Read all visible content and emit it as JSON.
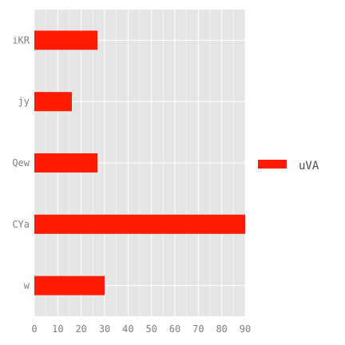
{
  "chart_data": {
    "type": "bar",
    "orientation": "horizontal",
    "categories": [
      "iKR",
      "jy",
      "Qew",
      "CYa",
      "w"
    ],
    "series": [
      {
        "name": "uVA",
        "values": [
          27,
          16,
          27,
          90,
          30
        ],
        "color": "#ff1a00"
      }
    ],
    "xlim": [
      0,
      90
    ],
    "x_ticks": [
      0,
      10,
      20,
      30,
      40,
      50,
      60,
      70,
      80,
      90
    ],
    "title": "",
    "xlabel": "",
    "ylabel": "",
    "grid": true,
    "legend_position": "right",
    "panel_background": "#e5e5e5",
    "grid_color": "#ffffff"
  }
}
